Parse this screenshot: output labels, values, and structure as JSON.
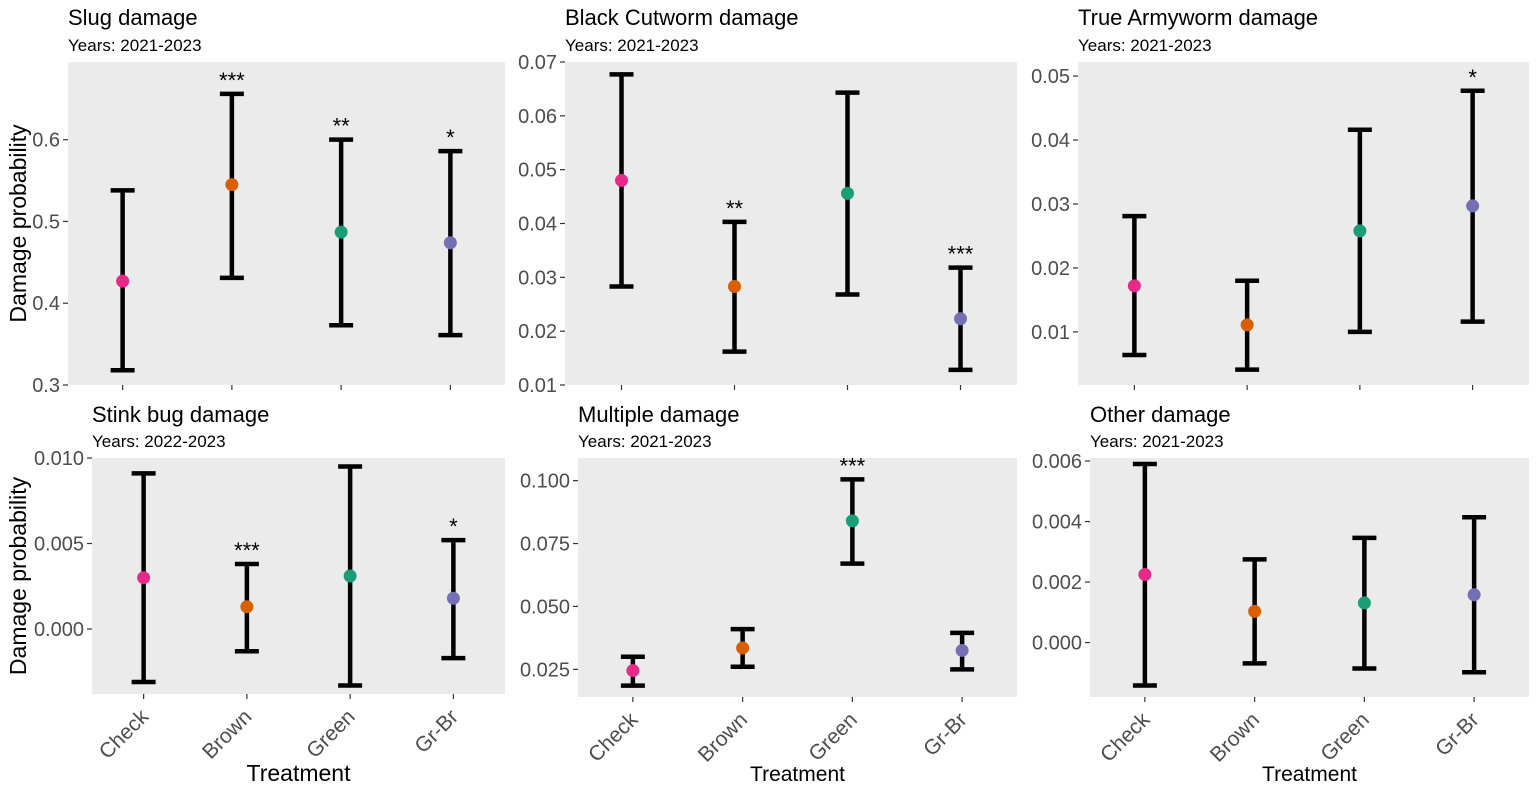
{
  "figure": {
    "ylabel": "Damage probability",
    "xlabel": "Treatment",
    "categories": [
      "Check",
      "Brown",
      "Green",
      "Gr-Br"
    ],
    "colors": {
      "Check": "#e7298a",
      "Brown": "#d95f02",
      "Green": "#1b9e77",
      "Gr-Br": "#7570b3"
    },
    "panel_bg": "#ebebeb"
  },
  "chart_data": [
    {
      "type": "scatter",
      "title": "Slug damage",
      "subtitle": "Years: 2021-2023",
      "categories": [
        "Check",
        "Brown",
        "Green",
        "Gr-Br"
      ],
      "values": [
        0.427,
        0.545,
        0.487,
        0.474
      ],
      "lower": [
        0.318,
        0.431,
        0.373,
        0.361
      ],
      "upper": [
        0.538,
        0.656,
        0.6,
        0.586
      ],
      "significance": [
        "",
        "***",
        "**",
        "*"
      ],
      "yticks": [
        "0.3",
        "0.4",
        "0.5",
        "0.6"
      ],
      "ylim": [
        0.3,
        0.695
      ]
    },
    {
      "type": "scatter",
      "title": "Black Cutworm damage",
      "subtitle": "Years: 2021-2023",
      "categories": [
        "Check",
        "Brown",
        "Green",
        "Gr-Br"
      ],
      "values": [
        0.048,
        0.0283,
        0.0456,
        0.0223
      ],
      "lower": [
        0.0283,
        0.0162,
        0.0268,
        0.0128
      ],
      "upper": [
        0.0677,
        0.0403,
        0.0643,
        0.0318
      ],
      "significance": [
        "",
        "**",
        "",
        "***"
      ],
      "yticks": [
        "0.01",
        "0.02",
        "0.03",
        "0.04",
        "0.05",
        "0.06",
        "0.07"
      ],
      "ylim": [
        0.01,
        0.07
      ]
    },
    {
      "type": "scatter",
      "title": "True Armyworm damage",
      "subtitle": "Years: 2021-2023",
      "categories": [
        "Check",
        "Brown",
        "Green",
        "Gr-Br"
      ],
      "values": [
        0.0172,
        0.0111,
        0.0258,
        0.0297
      ],
      "lower": [
        0.0064,
        0.0041,
        0.01,
        0.0116
      ],
      "upper": [
        0.0281,
        0.018,
        0.0416,
        0.0477
      ],
      "significance": [
        "",
        "",
        "",
        "*"
      ],
      "yticks": [
        "0.01",
        "0.02",
        "0.03",
        "0.04",
        "0.05"
      ],
      "ylim": [
        0.0017,
        0.0522
      ]
    },
    {
      "type": "scatter",
      "title": "Stink bug damage",
      "subtitle": "Years: 2022-2023",
      "categories": [
        "Check",
        "Brown",
        "Green",
        "Gr-Br"
      ],
      "values": [
        0.003,
        0.0013,
        0.0031,
        0.0018
      ],
      "lower": [
        -0.0031,
        -0.0013,
        -0.0033,
        -0.0017
      ],
      "upper": [
        0.0091,
        0.0038,
        0.0095,
        0.0052
      ],
      "significance": [
        "",
        "***",
        "",
        "*"
      ],
      "yticks": [
        "0.000",
        "0.005",
        "0.010"
      ],
      "ylim": [
        -0.0038,
        0.01
      ]
    },
    {
      "type": "scatter",
      "title": "Multiple damage",
      "subtitle": "Years: 2021-2023",
      "categories": [
        "Check",
        "Brown",
        "Green",
        "Gr-Br"
      ],
      "values": [
        0.0245,
        0.0335,
        0.084,
        0.0325
      ],
      "lower": [
        0.0185,
        0.026,
        0.067,
        0.025
      ],
      "upper": [
        0.03,
        0.041,
        0.1005,
        0.0395
      ],
      "significance": [
        "",
        "",
        "***",
        ""
      ],
      "yticks": [
        "0.025",
        "0.050",
        "0.075",
        "0.100"
      ],
      "ylim": [
        0.014,
        0.109
      ]
    },
    {
      "type": "scatter",
      "title": "Other damage",
      "subtitle": "Years: 2021-2023",
      "categories": [
        "Check",
        "Brown",
        "Green",
        "Gr-Br"
      ],
      "values": [
        0.00225,
        0.00103,
        0.00131,
        0.00158
      ],
      "lower": [
        -0.00142,
        -0.00069,
        -0.00086,
        -0.00098
      ],
      "upper": [
        0.0059,
        0.00275,
        0.00346,
        0.00414
      ],
      "significance": [
        "",
        "",
        "",
        ""
      ],
      "yticks": [
        "0.000",
        "0.002",
        "0.004",
        "0.006"
      ],
      "ylim": [
        -0.0018,
        0.0061
      ]
    }
  ]
}
